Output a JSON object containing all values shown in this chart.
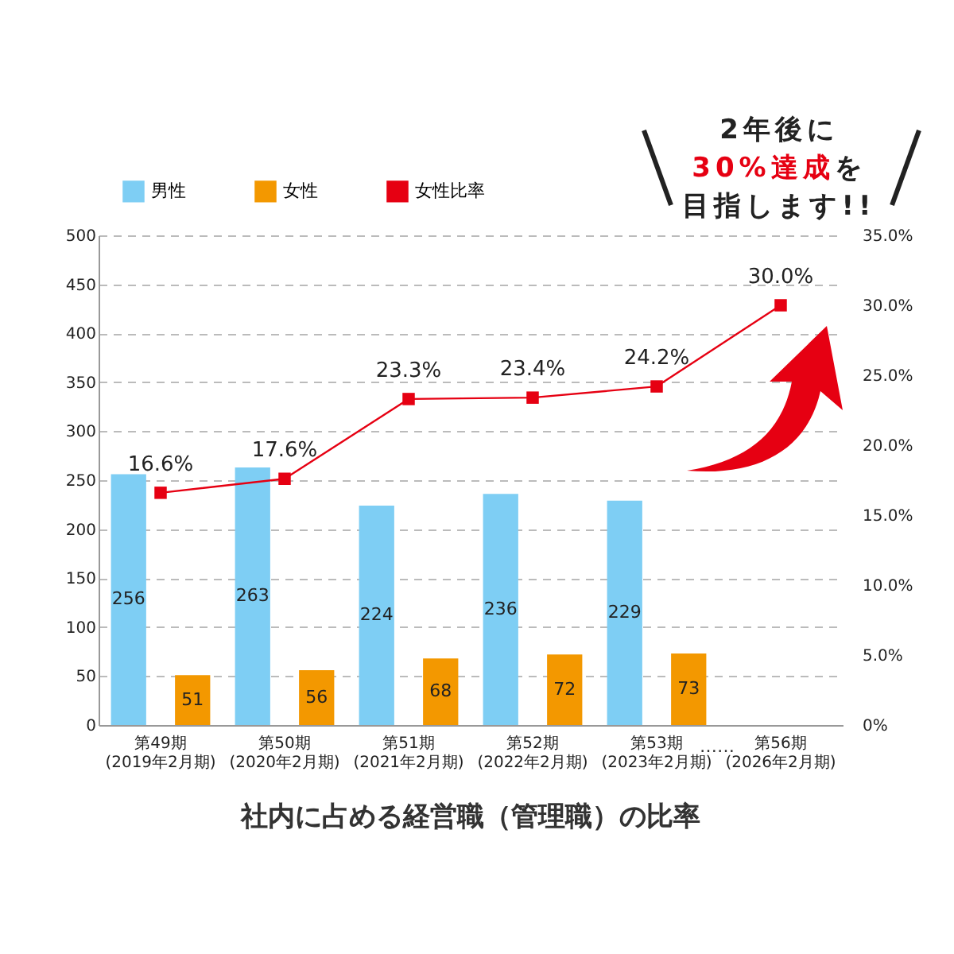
{
  "chart_data": {
    "type": "bar",
    "title": "社内に占める経営職（管理職）の比率",
    "categories": [
      "第49期\n(2019年2月期)",
      "第50期\n(2020年2月期)",
      "第51期\n(2021年2月期)",
      "第52期\n(2022年2月期)",
      "第53期\n(2023年2月期)",
      "第56期\n(2026年2月期)"
    ],
    "series": [
      {
        "name": "男性",
        "color": "#7ecef4",
        "values": [
          256,
          263,
          224,
          236,
          229,
          null
        ],
        "value_labels": [
          "256",
          "263",
          "224",
          "236",
          "229",
          null
        ]
      },
      {
        "name": "女性",
        "color": "#f39800",
        "values": [
          51,
          56,
          68,
          72,
          73,
          null
        ],
        "value_labels": [
          "51",
          "56",
          "68",
          "72",
          "73",
          null
        ]
      },
      {
        "name": "女性比率",
        "type": "line",
        "axis": "y2",
        "color": "#e60012",
        "values": [
          16.6,
          17.6,
          23.3,
          23.4,
          24.2,
          30.0
        ],
        "value_labels": [
          "16.6%",
          "17.6%",
          "23.3%",
          "23.4%",
          "24.2%",
          "30.0%"
        ]
      }
    ],
    "ylim": [
      0,
      500
    ],
    "yticks": [
      0,
      50,
      100,
      150,
      200,
      250,
      300,
      350,
      400,
      450,
      500
    ],
    "y2lim": [
      0,
      35
    ],
    "y2ticks": [
      {
        "value": 0,
        "label": "0%"
      },
      {
        "value": 5,
        "label": "5.0%"
      },
      {
        "value": 10,
        "label": "10.0%"
      },
      {
        "value": 15,
        "label": "15.0%"
      },
      {
        "value": 20,
        "label": "20.0%"
      },
      {
        "value": 25,
        "label": "25.0%"
      },
      {
        "value": 30,
        "label": "30.0%"
      },
      {
        "value": 35,
        "label": "35.0%"
      }
    ],
    "grid": "y",
    "legend": "top left",
    "marker": "square",
    "line_style": "solid",
    "annotations": [
      "2年後に",
      "30%達成",
      "を",
      "目指します!!",
      "……"
    ]
  }
}
